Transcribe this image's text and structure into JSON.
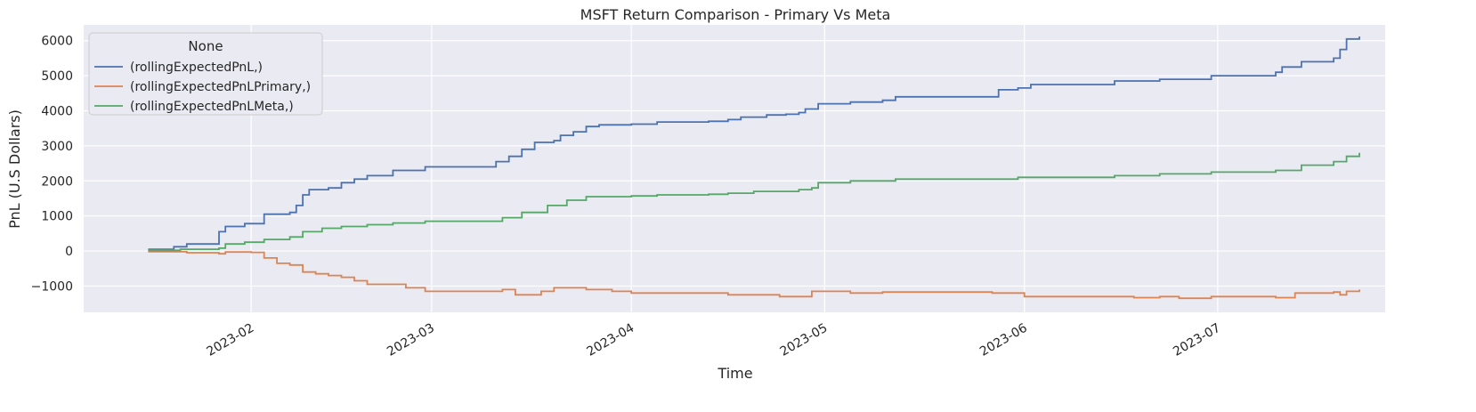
{
  "chart_data": {
    "type": "line",
    "title": "MSFT Return Comparison - Primary Vs Meta",
    "xlabel": "Time",
    "ylabel": "PnL (U.S Dollars)",
    "xlim": [
      "2023-01-06",
      "2023-07-27"
    ],
    "ylim": [
      -1750,
      6450
    ],
    "grid": true,
    "background": "#eaeaf2",
    "legend": {
      "title": "None",
      "placement": "top-left"
    },
    "x_ticks": [
      "2023-02-01",
      "2023-03-01",
      "2023-04-01",
      "2023-05-01",
      "2023-06-01",
      "2023-07-01"
    ],
    "x_tick_labels": [
      "2023-02",
      "2023-03",
      "2023-04",
      "2023-05",
      "2023-06",
      "2023-07"
    ],
    "y_ticks": [
      -1000,
      0,
      1000,
      2000,
      3000,
      4000,
      5000,
      6000
    ],
    "y_tick_labels": [
      "−1000",
      "0",
      "1000",
      "2000",
      "3000",
      "4000",
      "5000",
      "6000"
    ],
    "series": [
      {
        "name": "(rollingExpectedPnL,)",
        "color": "#4c72b0",
        "points": [
          [
            "2023-01-16",
            50
          ],
          [
            "2023-01-20",
            50
          ],
          [
            "2023-01-20",
            120
          ],
          [
            "2023-01-22",
            120
          ],
          [
            "2023-01-22",
            200
          ],
          [
            "2023-01-27",
            200
          ],
          [
            "2023-01-27",
            550
          ],
          [
            "2023-01-28",
            700
          ],
          [
            "2023-01-31",
            700
          ],
          [
            "2023-01-31",
            780
          ],
          [
            "2023-02-03",
            780
          ],
          [
            "2023-02-03",
            1050
          ],
          [
            "2023-02-07",
            1100
          ],
          [
            "2023-02-08",
            1300
          ],
          [
            "2023-02-09",
            1600
          ],
          [
            "2023-02-10",
            1750
          ],
          [
            "2023-02-13",
            1800
          ],
          [
            "2023-02-15",
            1950
          ],
          [
            "2023-02-17",
            2050
          ],
          [
            "2023-02-19",
            2150
          ],
          [
            "2023-02-22",
            2150
          ],
          [
            "2023-02-23",
            2300
          ],
          [
            "2023-02-28",
            2400
          ],
          [
            "2023-03-10",
            2400
          ],
          [
            "2023-03-11",
            2550
          ],
          [
            "2023-03-13",
            2700
          ],
          [
            "2023-03-15",
            2900
          ],
          [
            "2023-03-17",
            3100
          ],
          [
            "2023-03-20",
            3150
          ],
          [
            "2023-03-21",
            3300
          ],
          [
            "2023-03-23",
            3400
          ],
          [
            "2023-03-25",
            3550
          ],
          [
            "2023-03-27",
            3600
          ],
          [
            "2023-04-01",
            3620
          ],
          [
            "2023-04-05",
            3680
          ],
          [
            "2023-04-13",
            3700
          ],
          [
            "2023-04-16",
            3750
          ],
          [
            "2023-04-18",
            3820
          ],
          [
            "2023-04-22",
            3880
          ],
          [
            "2023-04-25",
            3900
          ],
          [
            "2023-04-27",
            3950
          ],
          [
            "2023-04-28",
            4050
          ],
          [
            "2023-04-30",
            4200
          ],
          [
            "2023-05-03",
            4200
          ],
          [
            "2023-05-05",
            4250
          ],
          [
            "2023-05-10",
            4300
          ],
          [
            "2023-05-12",
            4400
          ],
          [
            "2023-05-27",
            4400
          ],
          [
            "2023-05-28",
            4600
          ],
          [
            "2023-05-31",
            4650
          ],
          [
            "2023-06-02",
            4750
          ],
          [
            "2023-06-14",
            4750
          ],
          [
            "2023-06-15",
            4850
          ],
          [
            "2023-06-22",
            4900
          ],
          [
            "2023-06-30",
            5000
          ],
          [
            "2023-07-10",
            5100
          ],
          [
            "2023-07-11",
            5250
          ],
          [
            "2023-07-14",
            5400
          ],
          [
            "2023-07-19",
            5500
          ],
          [
            "2023-07-20",
            5750
          ],
          [
            "2023-07-21",
            6050
          ],
          [
            "2023-07-23",
            6050
          ],
          [
            "2023-07-23",
            6120
          ]
        ]
      },
      {
        "name": "(rollingExpectedPnLPrimary,)",
        "color": "#dd8452",
        "points": [
          [
            "2023-01-16",
            -20
          ],
          [
            "2023-01-22",
            -50
          ],
          [
            "2023-01-27",
            -80
          ],
          [
            "2023-01-28",
            -30
          ],
          [
            "2023-02-01",
            -40
          ],
          [
            "2023-02-03",
            -200
          ],
          [
            "2023-02-05",
            -350
          ],
          [
            "2023-02-07",
            -400
          ],
          [
            "2023-02-09",
            -600
          ],
          [
            "2023-02-11",
            -650
          ],
          [
            "2023-02-13",
            -700
          ],
          [
            "2023-02-15",
            -750
          ],
          [
            "2023-02-17",
            -850
          ],
          [
            "2023-02-19",
            -950
          ],
          [
            "2023-02-25",
            -1050
          ],
          [
            "2023-02-28",
            -1150
          ],
          [
            "2023-03-12",
            -1100
          ],
          [
            "2023-03-14",
            -1250
          ],
          [
            "2023-03-18",
            -1150
          ],
          [
            "2023-03-20",
            -1050
          ],
          [
            "2023-03-25",
            -1100
          ],
          [
            "2023-03-29",
            -1150
          ],
          [
            "2023-04-01",
            -1200
          ],
          [
            "2023-04-12",
            -1200
          ],
          [
            "2023-04-16",
            -1250
          ],
          [
            "2023-04-21",
            -1250
          ],
          [
            "2023-04-24",
            -1300
          ],
          [
            "2023-04-27",
            -1300
          ],
          [
            "2023-04-29",
            -1150
          ],
          [
            "2023-05-05",
            -1200
          ],
          [
            "2023-05-10",
            -1170
          ],
          [
            "2023-05-27",
            -1200
          ],
          [
            "2023-05-31",
            -1200
          ],
          [
            "2023-06-01",
            -1300
          ],
          [
            "2023-06-14",
            -1300
          ],
          [
            "2023-06-18",
            -1330
          ],
          [
            "2023-06-22",
            -1300
          ],
          [
            "2023-06-25",
            -1350
          ],
          [
            "2023-06-30",
            -1300
          ],
          [
            "2023-07-10",
            -1330
          ],
          [
            "2023-07-13",
            -1200
          ],
          [
            "2023-07-19",
            -1170
          ],
          [
            "2023-07-20",
            -1250
          ],
          [
            "2023-07-21",
            -1150
          ],
          [
            "2023-07-23",
            -1100
          ]
        ]
      },
      {
        "name": "(rollingExpectedPnLMeta,)",
        "color": "#55a868",
        "points": [
          [
            "2023-01-16",
            20
          ],
          [
            "2023-01-20",
            20
          ],
          [
            "2023-01-21",
            50
          ],
          [
            "2023-01-27",
            80
          ],
          [
            "2023-01-28",
            200
          ],
          [
            "2023-01-31",
            250
          ],
          [
            "2023-02-03",
            330
          ],
          [
            "2023-02-07",
            400
          ],
          [
            "2023-02-09",
            550
          ],
          [
            "2023-02-12",
            650
          ],
          [
            "2023-02-15",
            700
          ],
          [
            "2023-02-19",
            750
          ],
          [
            "2023-02-23",
            800
          ],
          [
            "2023-02-28",
            850
          ],
          [
            "2023-03-10",
            850
          ],
          [
            "2023-03-12",
            950
          ],
          [
            "2023-03-15",
            1100
          ],
          [
            "2023-03-19",
            1300
          ],
          [
            "2023-03-22",
            1450
          ],
          [
            "2023-03-25",
            1550
          ],
          [
            "2023-04-01",
            1570
          ],
          [
            "2023-04-05",
            1600
          ],
          [
            "2023-04-13",
            1620
          ],
          [
            "2023-04-16",
            1650
          ],
          [
            "2023-04-20",
            1700
          ],
          [
            "2023-04-27",
            1750
          ],
          [
            "2023-04-29",
            1800
          ],
          [
            "2023-04-30",
            1950
          ],
          [
            "2023-05-05",
            2000
          ],
          [
            "2023-05-12",
            2050
          ],
          [
            "2023-05-31",
            2100
          ],
          [
            "2023-06-15",
            2150
          ],
          [
            "2023-06-22",
            2200
          ],
          [
            "2023-06-30",
            2250
          ],
          [
            "2023-07-10",
            2300
          ],
          [
            "2023-07-14",
            2450
          ],
          [
            "2023-07-19",
            2550
          ],
          [
            "2023-07-21",
            2700
          ],
          [
            "2023-07-23",
            2800
          ]
        ]
      }
    ]
  }
}
